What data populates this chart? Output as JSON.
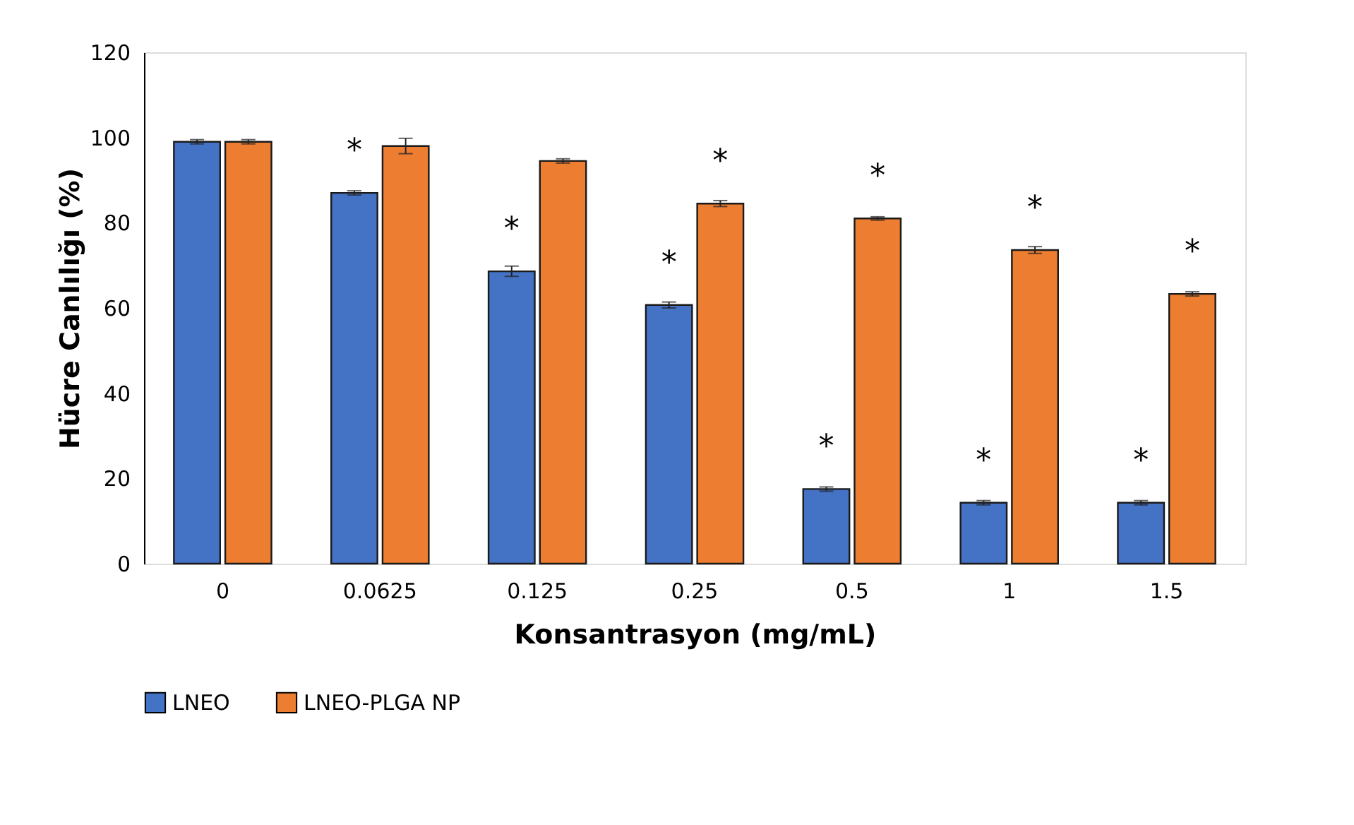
{
  "chart_data": {
    "type": "bar",
    "xlabel": "Konsantrasyon (mg/mL)",
    "ylabel": "Hücre Canlılığı (%)",
    "categories": [
      "0",
      "0.0625",
      "0.125",
      "0.25",
      "0.5",
      "1",
      "1.5"
    ],
    "series": [
      {
        "name": "LNEO",
        "color": "#4472c4",
        "values": [
          99,
          87,
          68.6,
          60.7,
          17.5,
          14.3,
          14.3
        ],
        "errors": [
          0.5,
          0.5,
          1.2,
          0.7,
          0.5,
          0.5,
          0.5
        ]
      },
      {
        "name": "LNEO-PLGA NP",
        "color": "#ed7d31",
        "values": [
          99,
          98,
          94.5,
          84.5,
          81,
          73.6,
          63.3
        ],
        "errors": [
          0.5,
          1.8,
          0.5,
          0.7,
          0.4,
          0.8,
          0.5
        ]
      }
    ],
    "ylim": [
      0,
      120
    ],
    "yticks": [
      0,
      20,
      40,
      60,
      80,
      100,
      120
    ],
    "grid": false,
    "legend": "bottom",
    "annotations": [
      {
        "text": "*",
        "x": "0.0625",
        "y": 87
      },
      {
        "text": "*",
        "x": "0.125",
        "y": 68.6
      },
      {
        "text": "*",
        "x": "0.25",
        "y": 60.7
      },
      {
        "text": "*",
        "x": "0.25",
        "y": 84.5
      },
      {
        "text": "*",
        "x": "0.5",
        "y": 17.5
      },
      {
        "text": "*",
        "x": "0.5",
        "y": 81
      },
      {
        "text": "*",
        "x": "1",
        "y": 14.3
      },
      {
        "text": "*",
        "x": "1",
        "y": 73.6
      },
      {
        "text": "*",
        "x": "1.5",
        "y": 14.3
      },
      {
        "text": "*",
        "x": "1.5",
        "y": 63.3
      }
    ]
  }
}
